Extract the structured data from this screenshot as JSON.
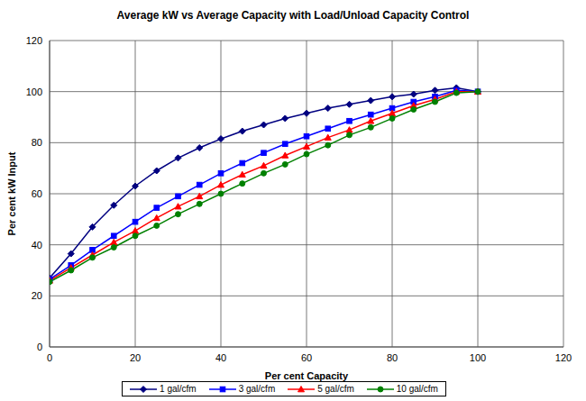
{
  "chart_data": {
    "type": "line",
    "title": "Average kW vs Average Capacity with Load/Unload Capacity Control",
    "x_label": "Per cent Capacity",
    "y_label": "Per cent kW Input",
    "x": [
      0,
      5,
      10,
      15,
      20,
      25,
      30,
      35,
      40,
      45,
      50,
      55,
      60,
      65,
      70,
      75,
      80,
      85,
      90,
      95,
      100
    ],
    "series": [
      {
        "name": "1 gal/cfm",
        "color": "#000080",
        "marker": "diamond",
        "values": [
          27,
          36.5,
          47,
          55.5,
          63,
          69,
          74,
          78,
          81.5,
          84.5,
          87,
          89.5,
          91.5,
          93.5,
          95,
          96.5,
          98,
          99,
          100.5,
          101.5,
          100
        ]
      },
      {
        "name": "3 gal/cfm",
        "color": "#0000ff",
        "marker": "square",
        "values": [
          26.5,
          32,
          38,
          43.5,
          49,
          54.5,
          59,
          63.5,
          68,
          72,
          76,
          79.5,
          82.5,
          85.5,
          88.5,
          91,
          93.5,
          96,
          98,
          100.5,
          100
        ]
      },
      {
        "name": "5 gal/cfm",
        "color": "#ff0000",
        "marker": "triangle",
        "values": [
          26,
          31,
          36,
          41,
          45.5,
          50.5,
          55,
          59,
          63.5,
          67.5,
          71,
          75,
          78.5,
          82,
          85,
          88.5,
          91.5,
          94.5,
          97,
          100,
          100
        ]
      },
      {
        "name": "10 gal/cfm",
        "color": "#008000",
        "marker": "circle",
        "values": [
          25.5,
          30,
          35,
          39,
          43.5,
          47.5,
          52,
          56,
          60,
          64,
          68,
          71.5,
          75.5,
          79,
          83,
          86,
          89.5,
          93,
          96,
          99.5,
          100
        ]
      }
    ],
    "xlim": [
      0,
      120
    ],
    "xticks": [
      0,
      20,
      40,
      60,
      80,
      100,
      120
    ],
    "ylim": [
      0,
      120
    ],
    "yticks": [
      0,
      20,
      40,
      60,
      80,
      100,
      120
    ],
    "grid": true,
    "legend": "bottom"
  }
}
